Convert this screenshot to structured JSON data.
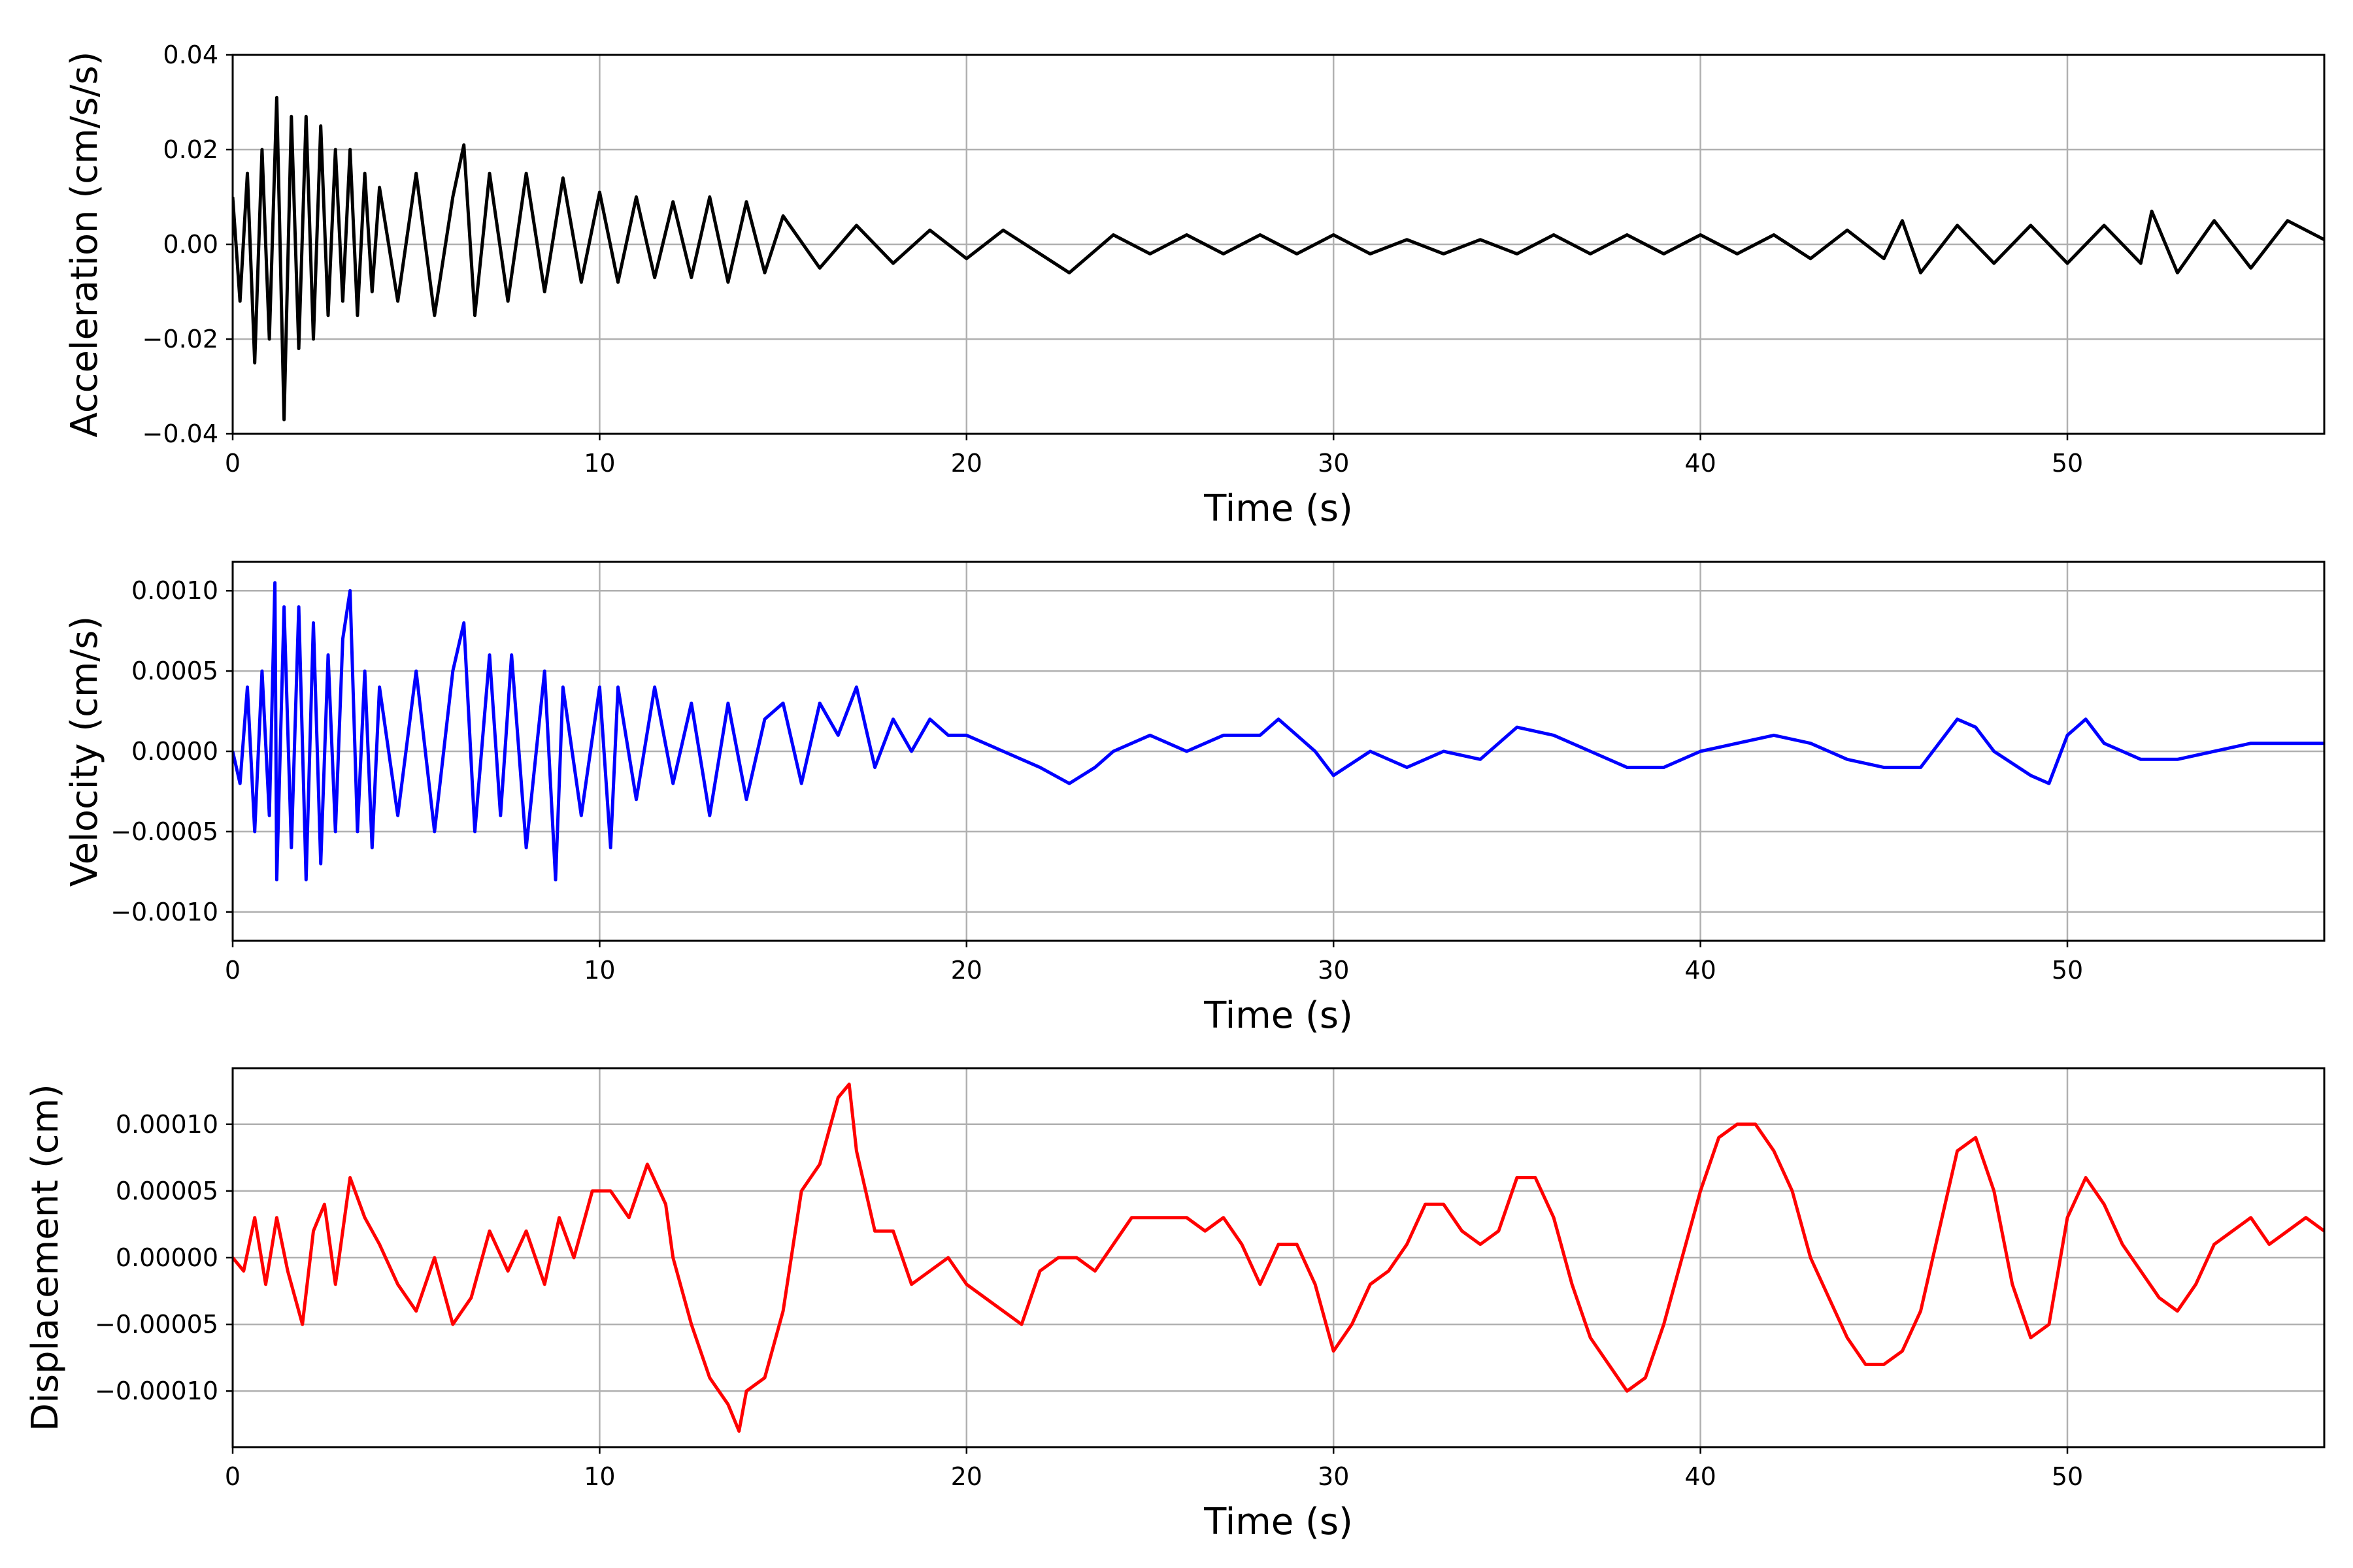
{
  "figure": {
    "background": "#ffffff",
    "grid_color": "#b0b0b0"
  },
  "chart_data": [
    {
      "type": "line",
      "title": "",
      "xlabel": "Time (s)",
      "ylabel": "Acceleration (cm/s/s)",
      "xlim": [
        0,
        57
      ],
      "ylim": [
        -0.04,
        0.04
      ],
      "xticks": [
        0,
        10,
        20,
        30,
        40,
        50
      ],
      "xtick_labels": [
        "0",
        "10",
        "20",
        "30",
        "40",
        "50"
      ],
      "yticks": [
        -0.04,
        -0.02,
        0.0,
        0.02,
        0.04
      ],
      "ytick_labels": [
        "−0.04",
        "−0.02",
        "0.00",
        "0.02",
        "0.04"
      ],
      "grid": true,
      "series": [
        {
          "color": "#000000",
          "x": [
            0,
            0.2,
            0.4,
            0.6,
            0.8,
            1,
            1.2,
            1.4,
            1.6,
            1.8,
            2,
            2.2,
            2.4,
            2.6,
            2.8,
            3,
            3.2,
            3.4,
            3.6,
            3.8,
            4,
            4.5,
            5,
            5.5,
            6,
            6.3,
            6.6,
            7,
            7.5,
            8,
            8.5,
            9,
            9.5,
            10,
            10.5,
            11,
            11.5,
            12,
            12.5,
            13,
            13.5,
            14,
            14.5,
            15,
            16,
            17,
            18,
            19,
            20,
            21,
            22,
            22.8,
            24,
            25,
            26,
            27,
            28,
            29,
            30,
            31,
            32,
            33,
            34,
            35,
            36,
            37,
            38,
            39,
            40,
            41,
            42,
            43,
            44,
            45,
            45.5,
            46,
            47,
            48,
            49,
            50,
            51,
            52,
            52.3,
            53,
            54,
            55,
            56,
            57
          ],
          "y": [
            0.01,
            -0.012,
            0.015,
            -0.025,
            0.02,
            -0.02,
            0.031,
            -0.037,
            0.027,
            -0.022,
            0.027,
            -0.02,
            0.025,
            -0.015,
            0.02,
            -0.012,
            0.02,
            -0.015,
            0.015,
            -0.01,
            0.012,
            -0.012,
            0.015,
            -0.015,
            0.01,
            0.021,
            -0.015,
            0.015,
            -0.012,
            0.015,
            -0.01,
            0.014,
            -0.008,
            0.011,
            -0.008,
            0.01,
            -0.007,
            0.009,
            -0.007,
            0.01,
            -0.008,
            0.009,
            -0.006,
            0.006,
            -0.005,
            0.004,
            -0.004,
            0.003,
            -0.003,
            0.003,
            -0.002,
            -0.006,
            0.002,
            -0.002,
            0.002,
            -0.002,
            0.002,
            -0.002,
            0.002,
            -0.002,
            0.001,
            -0.002,
            0.001,
            -0.002,
            0.002,
            -0.002,
            0.002,
            -0.002,
            0.002,
            -0.002,
            0.002,
            -0.003,
            0.003,
            -0.003,
            0.005,
            -0.006,
            0.004,
            -0.004,
            0.004,
            -0.004,
            0.004,
            -0.004,
            0.007,
            -0.006,
            0.005,
            -0.005,
            0.005,
            0.001
          ]
        }
      ]
    },
    {
      "type": "line",
      "title": "",
      "xlabel": "Time (s)",
      "ylabel": "Velocity (cm/s)",
      "xlim": [
        0,
        57
      ],
      "ylim": [
        -0.00118,
        0.00118
      ],
      "xticks": [
        0,
        10,
        20,
        30,
        40,
        50
      ],
      "xtick_labels": [
        "0",
        "10",
        "20",
        "30",
        "40",
        "50"
      ],
      "yticks": [
        -0.001,
        -0.0005,
        0.0,
        0.0005,
        0.001
      ],
      "ytick_labels": [
        "−0.0010",
        "−0.0005",
        "0.0000",
        "0.0005",
        "0.0010"
      ],
      "grid": true,
      "series": [
        {
          "color": "#0000ff",
          "x": [
            0,
            0.2,
            0.4,
            0.6,
            0.8,
            1,
            1.15,
            1.2,
            1.4,
            1.6,
            1.8,
            2,
            2.2,
            2.4,
            2.6,
            2.8,
            3,
            3.2,
            3.4,
            3.6,
            3.8,
            4,
            4.5,
            5,
            5.5,
            6,
            6.3,
            6.6,
            7,
            7.3,
            7.6,
            8,
            8.5,
            8.8,
            9,
            9.5,
            10,
            10.3,
            10.5,
            11,
            11.5,
            12,
            12.5,
            13,
            13.5,
            14,
            14.5,
            15,
            15.5,
            16,
            16.5,
            17,
            17.5,
            18,
            18.5,
            19,
            19.5,
            20,
            21,
            22,
            22.8,
            23.5,
            24,
            25,
            26,
            27,
            28,
            28.5,
            29,
            29.5,
            30,
            31,
            32,
            33,
            34,
            35,
            36,
            37,
            38,
            39,
            40,
            41,
            42,
            43,
            44,
            45,
            46,
            47,
            47.5,
            48,
            49,
            49.5,
            50,
            50.5,
            51,
            52,
            53,
            54,
            55,
            56,
            57
          ],
          "y": [
            0,
            -0.0002,
            0.0004,
            -0.0005,
            0.0005,
            -0.0004,
            0.00105,
            -0.0008,
            0.0009,
            -0.0006,
            0.0009,
            -0.0008,
            0.0008,
            -0.0007,
            0.0006,
            -0.0005,
            0.0007,
            0.001,
            -0.0005,
            0.0005,
            -0.0006,
            0.0004,
            -0.0004,
            0.0005,
            -0.0005,
            0.0005,
            0.0008,
            -0.0005,
            0.0006,
            -0.0004,
            0.0006,
            -0.0006,
            0.0005,
            -0.0008,
            0.0004,
            -0.0004,
            0.0004,
            -0.0006,
            0.0004,
            -0.0003,
            0.0004,
            -0.0002,
            0.0003,
            -0.0004,
            0.0003,
            -0.0003,
            0.0002,
            0.0003,
            -0.0002,
            0.0003,
            0.0001,
            0.0004,
            -0.0001,
            0.0002,
            0,
            0.0002,
            0.0001,
            0.0001,
            0,
            -0.0001,
            -0.0002,
            -0.0001,
            0,
            0.0001,
            0,
            0.0001,
            0.0001,
            0.0002,
            0.0001,
            0,
            -0.00015,
            0,
            -0.0001,
            0,
            -5e-05,
            0.00015,
            0.0001,
            0,
            -0.0001,
            -0.0001,
            0,
            5e-05,
            0.0001,
            5e-05,
            -5e-05,
            -0.0001,
            -0.0001,
            0.0002,
            0.00015,
            0,
            -0.00015,
            -0.0002,
            0.0001,
            0.0002,
            5e-05,
            -5e-05,
            -5e-05,
            0,
            5e-05,
            5e-05,
            5e-05
          ]
        }
      ]
    },
    {
      "type": "line",
      "title": "",
      "xlabel": "Time (s)",
      "ylabel": "Displacement (cm)",
      "xlim": [
        0,
        57
      ],
      "ylim": [
        -0.000142,
        0.000142
      ],
      "xticks": [
        0,
        10,
        20,
        30,
        40,
        50
      ],
      "xtick_labels": [
        "0",
        "10",
        "20",
        "30",
        "40",
        "50"
      ],
      "yticks": [
        -0.0001,
        -5e-05,
        0.0,
        5e-05,
        0.0001
      ],
      "ytick_labels": [
        "−0.00010",
        "−0.00005",
        "0.00000",
        "0.00005",
        "0.00010"
      ],
      "grid": true,
      "series": [
        {
          "color": "#ff0000",
          "x": [
            0,
            0.3,
            0.6,
            0.9,
            1.2,
            1.5,
            1.9,
            2.2,
            2.5,
            2.8,
            3.2,
            3.6,
            4,
            4.5,
            5,
            5.5,
            6,
            6.5,
            7,
            7.5,
            8,
            8.5,
            8.9,
            9.3,
            9.8,
            10.3,
            10.8,
            11.3,
            11.8,
            12,
            12.5,
            13,
            13.5,
            13.8,
            14,
            14.5,
            15,
            15.5,
            16,
            16.5,
            16.8,
            17,
            17.5,
            18,
            18.5,
            19,
            19.5,
            20,
            21,
            21.5,
            22,
            22.5,
            23,
            23.5,
            24,
            24.5,
            25,
            25.5,
            26,
            26.5,
            27,
            27.5,
            28,
            28.5,
            29,
            29.5,
            30,
            30.5,
            31,
            31.5,
            32,
            32.5,
            33,
            33.5,
            34,
            34.5,
            35,
            35.5,
            36,
            36.5,
            37,
            37.5,
            38,
            38.5,
            39,
            39.5,
            40,
            40.5,
            41,
            41.5,
            42,
            42.5,
            43,
            43.5,
            44,
            44.5,
            45,
            45.5,
            46,
            46.5,
            47,
            47.5,
            48,
            48.5,
            49,
            49.5,
            50,
            50.5,
            51,
            51.5,
            52,
            52.5,
            53,
            53.5,
            54,
            54.5,
            55,
            55.5,
            56,
            56.5,
            57
          ],
          "y": [
            0,
            -1e-05,
            3e-05,
            -2e-05,
            3e-05,
            -1e-05,
            -5e-05,
            2e-05,
            4e-05,
            -2e-05,
            6e-05,
            3e-05,
            1e-05,
            -2e-05,
            -4e-05,
            0,
            -5e-05,
            -3e-05,
            2e-05,
            -1e-05,
            2e-05,
            -2e-05,
            3e-05,
            0,
            5e-05,
            5e-05,
            3e-05,
            7e-05,
            4e-05,
            0,
            -5e-05,
            -9e-05,
            -0.00011,
            -0.00013,
            -0.0001,
            -9e-05,
            -4e-05,
            5e-05,
            7e-05,
            0.00012,
            0.00013,
            8e-05,
            2e-05,
            2e-05,
            -2e-05,
            -1e-05,
            0,
            -2e-05,
            -4e-05,
            -5e-05,
            -1e-05,
            0,
            0,
            -1e-05,
            1e-05,
            3e-05,
            3e-05,
            3e-05,
            3e-05,
            2e-05,
            3e-05,
            1e-05,
            -2e-05,
            1e-05,
            1e-05,
            -2e-05,
            -7e-05,
            -5e-05,
            -2e-05,
            -1e-05,
            1e-05,
            4e-05,
            4e-05,
            2e-05,
            1e-05,
            2e-05,
            6e-05,
            6e-05,
            3e-05,
            -2e-05,
            -6e-05,
            -8e-05,
            -0.0001,
            -9e-05,
            -5e-05,
            0,
            5e-05,
            9e-05,
            0.0001,
            0.0001,
            8e-05,
            5e-05,
            0,
            -3e-05,
            -6e-05,
            -8e-05,
            -8e-05,
            -7e-05,
            -4e-05,
            2e-05,
            8e-05,
            9e-05,
            5e-05,
            -2e-05,
            -6e-05,
            -5e-05,
            3e-05,
            6e-05,
            4e-05,
            1e-05,
            -1e-05,
            -3e-05,
            -4e-05,
            -2e-05,
            1e-05,
            2e-05,
            3e-05,
            1e-05,
            2e-05,
            3e-05,
            2e-05
          ]
        }
      ]
    }
  ]
}
